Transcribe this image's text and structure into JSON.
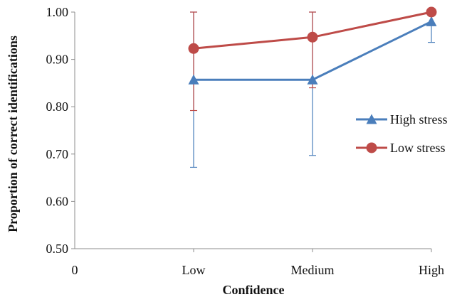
{
  "chart_data": {
    "type": "line",
    "title": "",
    "xlabel": "Confidence",
    "ylabel": "Proportion of correct identifications",
    "x_origin_label": "0",
    "categories": [
      "Low",
      "Medium",
      "High"
    ],
    "ylim": [
      0.5,
      1.0
    ],
    "yticks": [
      {
        "value": 0.5,
        "label": "0.50"
      },
      {
        "value": 0.6,
        "label": "0.60"
      },
      {
        "value": 0.7,
        "label": "0.70"
      },
      {
        "value": 0.8,
        "label": "0.80"
      },
      {
        "value": 0.9,
        "label": "0.90"
      },
      {
        "value": 1.0,
        "label": "1.00"
      }
    ],
    "grid": false,
    "legend_position": "right",
    "series": [
      {
        "name": "High stress",
        "color": "#4a7ebb",
        "marker": "triangle",
        "values": [
          0.857,
          0.857,
          0.98
        ],
        "error_low": [
          0.672,
          0.697,
          0.936
        ],
        "error_high": [
          1.0,
          1.0,
          1.0
        ]
      },
      {
        "name": "Low stress",
        "color": "#be4b48",
        "marker": "circle",
        "values": [
          0.923,
          0.947,
          1.0
        ],
        "error_low": [
          0.792,
          0.84,
          1.0
        ],
        "error_high": [
          1.0,
          1.0,
          1.0
        ]
      }
    ]
  }
}
